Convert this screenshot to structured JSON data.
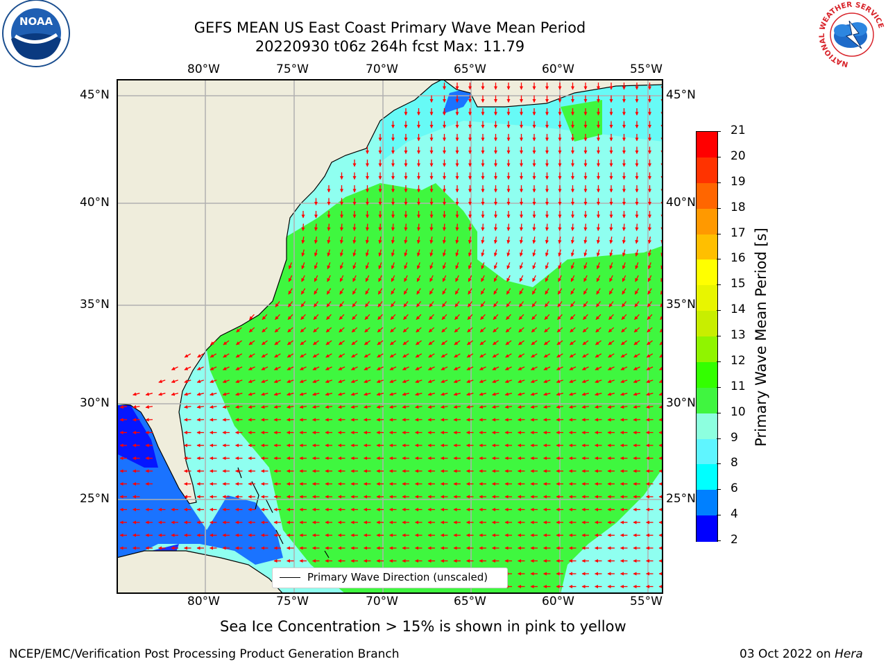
{
  "title": {
    "line1": "GEFS MEAN US East Coast Primary Wave Mean Period",
    "line2": "20220930 t06z 264h fcst   Max: 11.79"
  },
  "logos": {
    "noaa": "NOAA",
    "nws_ring": "NATIONAL WEATHER SERVICE"
  },
  "map": {
    "lon_labels": [
      "80°W",
      "75°W",
      "70°W",
      "65°W",
      "60°W",
      "55°W"
    ],
    "lat_labels": [
      "45°N",
      "40°N",
      "35°N",
      "30°N",
      "25°N"
    ],
    "legend_label": "Primary Wave Direction (unscaled)",
    "colors": {
      "land": "#efeddc",
      "ocean_green": "#3ff73f",
      "ocean_aqua": "#8ffff0",
      "ocean_cyan": "#55f8f8",
      "ocean_blue": "#1a73ff",
      "ocean_deep": "#0000ff",
      "arrows": "#ff0000",
      "grid": "#b0b0b0"
    }
  },
  "colorbar": {
    "label": "Primary Wave Mean Period [s]",
    "ticks": [
      "21",
      "20",
      "19",
      "18",
      "17",
      "16",
      "15",
      "14",
      "13",
      "12",
      "11",
      "10",
      "9",
      "8",
      "6",
      "4",
      "2"
    ],
    "colors": [
      "#ff0000",
      "#ff3300",
      "#ff6600",
      "#ff9900",
      "#ffbf00",
      "#ffff00",
      "#e8f500",
      "#c8ee00",
      "#90f400",
      "#33ff00",
      "#40f540",
      "#8dffdf",
      "#5ff5ff",
      "#00ffff",
      "#0080ff",
      "#0000ff"
    ]
  },
  "footer": {
    "ice_note": "Sea Ice Concentration > 15% is shown in pink to yellow",
    "left": "NCEP/EMC/Verification Post Processing Product Generation Branch",
    "date": "03 Oct 2022 on",
    "host": "Hera"
  }
}
